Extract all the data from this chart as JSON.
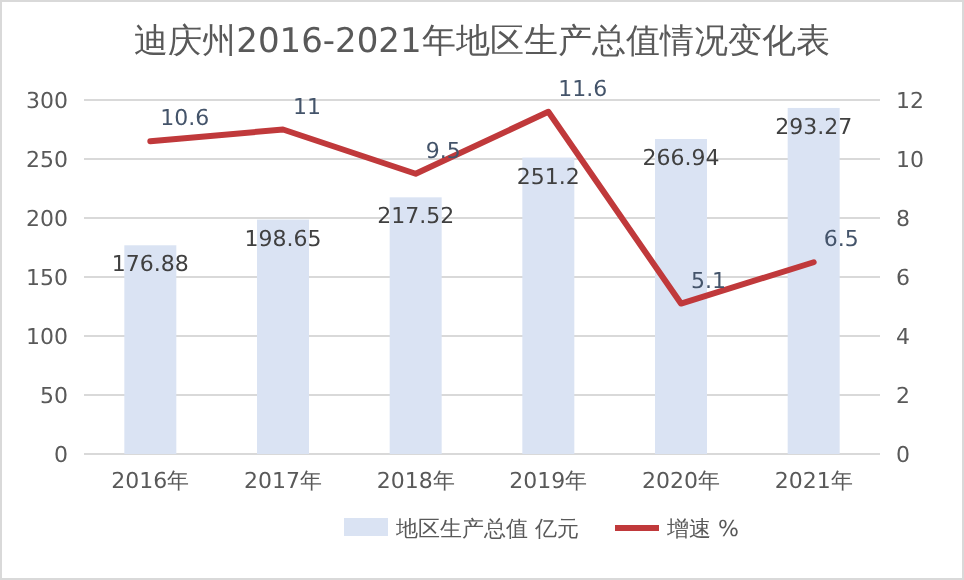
{
  "chart_data": {
    "type": "bar",
    "title": "迪庆州2016-2021年地区生产总值情况变化表",
    "categories": [
      "2016年",
      "2017年",
      "2018年",
      "2019年",
      "2020年",
      "2021年"
    ],
    "series": [
      {
        "name": "地区生产总值 亿元",
        "color": "#dae3f3",
        "values": [
          176.88,
          198.65,
          217.52,
          251.2,
          266.94,
          293.27
        ]
      },
      {
        "name": "增速 %",
        "type": "line",
        "axis": "y2",
        "color": "#c0393b",
        "values": [
          10.6,
          11,
          9.5,
          11.6,
          5.1,
          6.5
        ]
      }
    ],
    "ylim": [
      0,
      300
    ],
    "yticks": [
      0,
      50,
      100,
      150,
      200,
      250,
      300
    ],
    "y2lim": [
      0,
      12
    ],
    "y2ticks": [
      0,
      2,
      4,
      6,
      8,
      10,
      12
    ],
    "grid": "y",
    "legend": "bottom",
    "data_labels": true,
    "marker": "none",
    "line_style": "solid"
  }
}
